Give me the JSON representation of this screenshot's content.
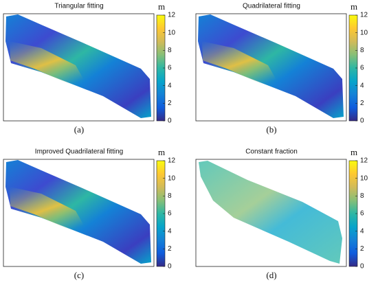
{
  "chart_data": [
    {
      "type": "heatmap",
      "title": "Triangular fitting",
      "caption": "(a)",
      "colorbar_label": "m",
      "clim": [
        0,
        12
      ],
      "cticks": [
        0,
        2,
        4,
        6,
        8,
        10,
        12
      ],
      "colormap": [
        "#352a87",
        "#0f5cdd",
        "#1481d6",
        "#06a4ca",
        "#2eb7a4",
        "#87bf77",
        "#d1bb59",
        "#fec832",
        "#f9fb0e"
      ]
    },
    {
      "type": "heatmap",
      "title": "Quadrilateral fitting",
      "caption": "(b)",
      "colorbar_label": "m",
      "clim": [
        0,
        12
      ],
      "cticks": [
        0,
        2,
        4,
        6,
        8,
        10,
        12
      ],
      "colormap": [
        "#352a87",
        "#0f5cdd",
        "#1481d6",
        "#06a4ca",
        "#2eb7a4",
        "#87bf77",
        "#d1bb59",
        "#fec832",
        "#f9fb0e"
      ]
    },
    {
      "type": "heatmap",
      "title": "Improved Quadrilateral fitting",
      "caption": "(c)",
      "colorbar_label": "m",
      "clim": [
        0,
        12
      ],
      "cticks": [
        0,
        2,
        4,
        6,
        8,
        10,
        12
      ],
      "colormap": [
        "#352a87",
        "#0f5cdd",
        "#1481d6",
        "#06a4ca",
        "#2eb7a4",
        "#87bf77",
        "#d1bb59",
        "#fec832",
        "#f9fb0e"
      ]
    },
    {
      "type": "heatmap",
      "title": "Constant fraction",
      "caption": "(d)",
      "colorbar_label": "m",
      "clim": [
        0,
        12
      ],
      "cticks": [
        0,
        2,
        4,
        6,
        8,
        10,
        12
      ],
      "colormap": [
        "#352a87",
        "#0f5cdd",
        "#1481d6",
        "#06a4ca",
        "#2eb7a4",
        "#87bf77",
        "#d1bb59",
        "#fec832",
        "#f9fb0e"
      ]
    }
  ]
}
